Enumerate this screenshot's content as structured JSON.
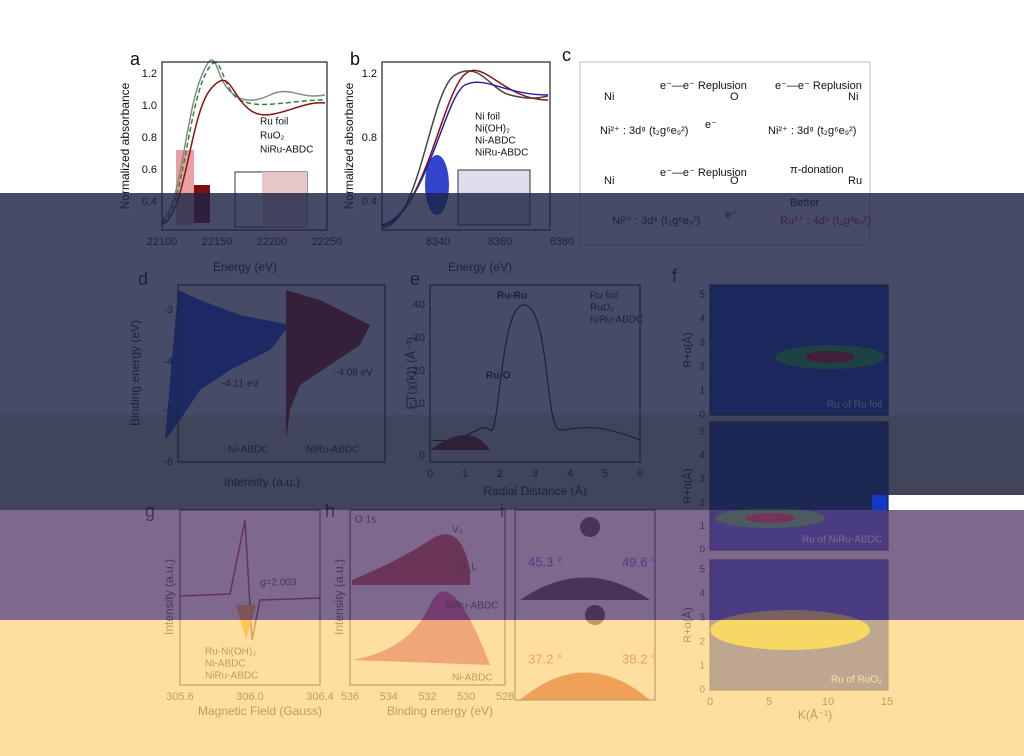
{
  "panels": {
    "a": {
      "letter": "a",
      "ylabel": "Normalized absorbance",
      "xlabel": "Energy (eV)",
      "xticks": [
        "22100",
        "22150",
        "22200",
        "22250"
      ],
      "yticks": [
        "1.2",
        "1.0",
        "0.8",
        "0.6",
        "0.4"
      ],
      "legend": [
        "Ru foil",
        "RuO₂",
        "NiRu-ABDC"
      ]
    },
    "b": {
      "letter": "b",
      "ylabel": "Normalized absorbance",
      "xlabel": "Energy (eV)",
      "xticks": [
        "8340",
        "8360",
        "8380"
      ],
      "yticks": [
        "1.2",
        "0.8",
        "0.4"
      ],
      "legend": [
        "Ni foil",
        "Ni(OH)₂",
        "Ni-ABDC",
        "NiRu-ABDC"
      ]
    },
    "c": {
      "letter": "c",
      "texts": [
        "Ni",
        "e⁻—e⁻ Replusion",
        "O",
        "e⁻—e⁻ Replusion",
        "Ni",
        "Ni²⁺ : 3d⁸ (t₂g⁶e₉²)",
        "e⁻",
        "Ni²⁺ : 3d⁸ (t₂g⁶e₉²)",
        "Ni",
        "e⁻—e⁻ Replusion",
        "O",
        "π-donation",
        "Ru",
        "Better",
        "Ni²⁺ : 3d⁸ (t₂g⁶e₉²)",
        "e⁻",
        "Ru³⁺ : 4d⁵ (t₂g³e₉²)"
      ]
    },
    "d": {
      "letter": "d",
      "ylabel": "Binding energy (eV)",
      "xlabel": "Intensity (a.u.)",
      "yticks": [
        "-3",
        "-4",
        "-5",
        "-6"
      ],
      "annotations": [
        "-4.11 eV",
        "-4.08 eV",
        "Ni-ABDC",
        "NiRu-ABDC"
      ]
    },
    "e": {
      "letter": "e",
      "ylabel": "FT(χ(k)) (Å⁻³)",
      "xlabel": "Radial Distance (Å)",
      "xticks": [
        "0",
        "1",
        "2",
        "3",
        "4",
        "5",
        "6"
      ],
      "yticks": [
        "40",
        "30",
        "20",
        "10",
        "0"
      ],
      "legend": [
        "Ru foil",
        "RuO₂",
        "NiRu-ABDC"
      ],
      "annotations": [
        "Ru-Ru",
        "Ru-O"
      ]
    },
    "f": {
      "letter": "f",
      "ylabel": "R+α(Å)",
      "xlabel": "K(Å⁻¹)",
      "yticks": [
        "0",
        "1",
        "2",
        "3",
        "4",
        "5"
      ],
      "xticks": [
        "0",
        "5",
        "10",
        "15"
      ],
      "maps": [
        "Ru of Ru foil",
        "Ru of NiRu-ABDC",
        "Ru of RuO₂"
      ]
    },
    "g": {
      "letter": "g",
      "ylabel": "Intensity (a.u.)",
      "xlabel": "Magnetic Field (Gauss)",
      "xticks": [
        "305.6",
        "306.0",
        "306.4"
      ],
      "annotations": [
        "g=2.003"
      ],
      "legend": [
        "Ru-Ni(OH)₂",
        "Ni-ABDC",
        "NiRu-ABDC"
      ]
    },
    "h": {
      "letter": "h",
      "ylabel": "Intensity (a.u.)",
      "xlabel": "Binding energy (eV)",
      "xticks": [
        "536",
        "534",
        "532",
        "530",
        "528"
      ],
      "annotations": [
        "O 1s",
        "V₀",
        "O_L",
        "NiRu-ABDC",
        "Ni-ABDC"
      ]
    },
    "i": {
      "letter": "i",
      "annotations": [
        "45.3 °",
        "49.6 °",
        "37.2 °",
        "38.2 °"
      ]
    }
  }
}
